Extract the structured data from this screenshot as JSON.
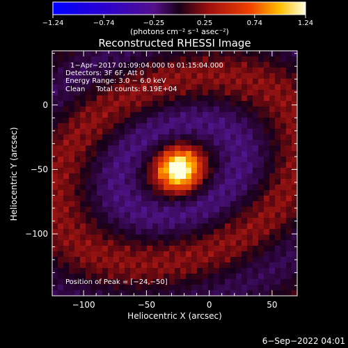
{
  "chart_data": {
    "type": "heatmap",
    "title": "Reconstructed RHESSI Image",
    "xlabel": "Heliocentric X (arcsec)",
    "ylabel": "Heliocentric Y (arcsec)",
    "xlim": [
      -125,
      70
    ],
    "ylim": [
      -148,
      42
    ],
    "x_ticks": [
      -100,
      -50,
      0,
      50
    ],
    "x_tick_labels": [
      "−100",
      "−50",
      "0",
      "50"
    ],
    "y_ticks": [
      0,
      -50,
      -100
    ],
    "y_tick_labels": [
      "0",
      "−50",
      "−100"
    ],
    "colorbar": {
      "min": -1.24,
      "max": 1.24,
      "ticks": [
        -1.24,
        -0.74,
        -0.25,
        0.25,
        0.74,
        1.24
      ],
      "tick_labels": [
        "−1.24",
        "−0.74",
        "−0.25",
        "0.25",
        "0.74",
        "1.24"
      ],
      "unit_label": "(photons cm⁻² s⁻¹ asec⁻²)"
    },
    "annotations": [
      "1−Apr−2017 01:09:04.000 to 01:15:04.000",
      "Detectors: 3F 6F, Att 0",
      "Energy Range: 3.0 − 6.0 keV",
      "Clean     Total counts: 8.19E+04"
    ],
    "peak_label": "Position of Peak = [−24,−50]",
    "peak": {
      "x": -24,
      "y": -50,
      "value": 1.24
    },
    "timestamp": "6−Sep−2022 04:01"
  }
}
